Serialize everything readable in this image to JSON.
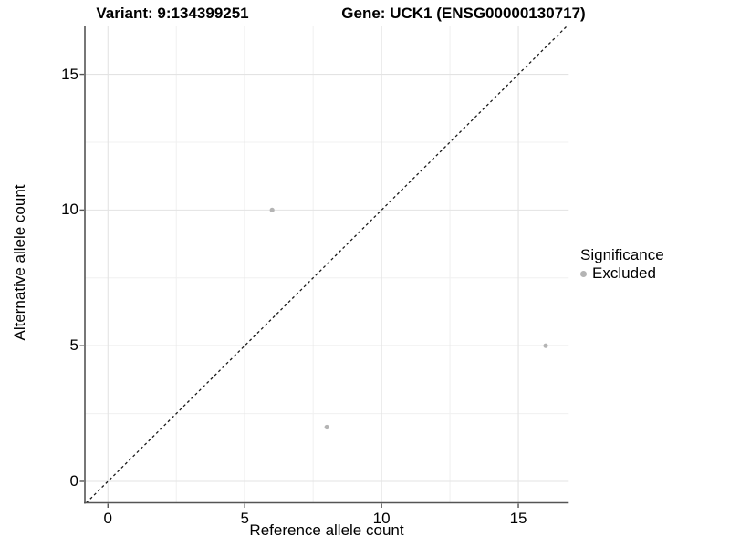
{
  "chart_data": {
    "type": "scatter",
    "titles": {
      "variant": "Variant: 9:134399251",
      "gene": "Gene: UCK1 (ENSG00000130717)"
    },
    "xlabel": "Reference allele count",
    "ylabel": "Alternative allele count",
    "xlim": [
      -0.843,
      16.843
    ],
    "ylim": [
      -0.79,
      16.8
    ],
    "x_major_ticks": [
      0,
      5,
      10,
      15
    ],
    "y_major_ticks": [
      0,
      5,
      10,
      15
    ],
    "x_minor_gridlines": [
      2.5,
      7.5,
      12.5
    ],
    "y_minor_gridlines": [
      2.5,
      7.5,
      12.5
    ],
    "grid": "major and minor gridlines on white panel",
    "reference_line": {
      "type": "identity y=x",
      "style": "dashed"
    },
    "series": [
      {
        "name": "Excluded",
        "marker": "circle",
        "color": "#b4b4b4",
        "points": [
          {
            "x": 6,
            "y": 10
          },
          {
            "x": 8,
            "y": 2
          },
          {
            "x": 16,
            "y": 5
          }
        ]
      }
    ],
    "legend": {
      "title": "Significance",
      "position": "right",
      "entries": [
        {
          "label": "Excluded",
          "color": "#b4b4b4"
        }
      ]
    }
  },
  "colors": {
    "background": "#ffffff",
    "grid_major": "#e3e3e3",
    "grid_minor": "#f0f0f0",
    "axis_line": "#555555",
    "tick_mark": "#555555",
    "reference_line": "#1a1a1a",
    "point": "#b4b4b4",
    "text": "#000000"
  }
}
